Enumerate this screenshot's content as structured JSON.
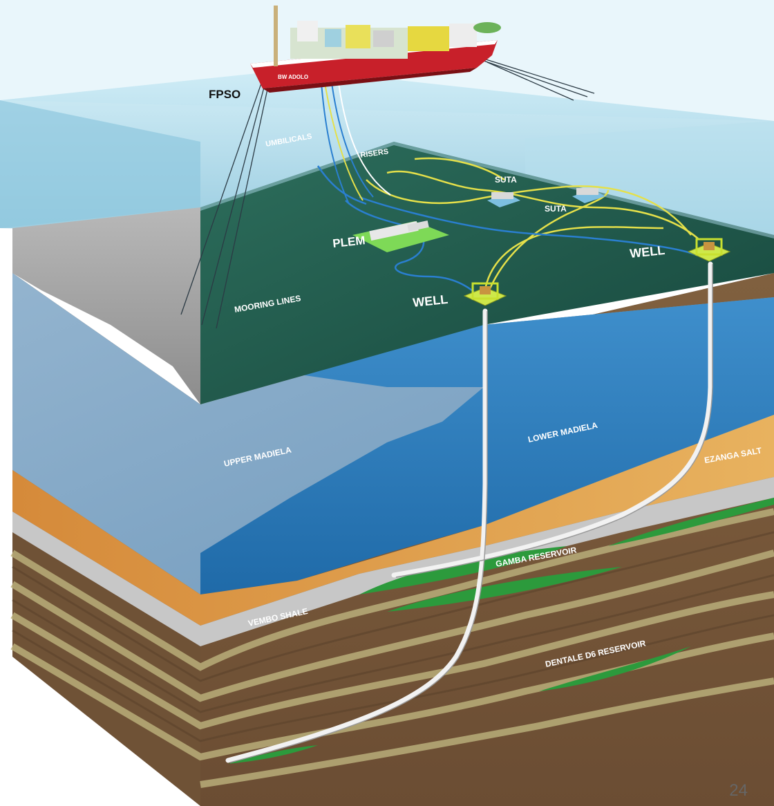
{
  "labels": {
    "fpso": "FPSO",
    "ship_name": "BW ADOLO",
    "umbilicals": "UMBILICALS",
    "risers": "RISERS",
    "suta_1": "SUTA",
    "suta_2": "SUTA",
    "plem": "PLEM",
    "well_1": "WELL",
    "well_2": "WELL",
    "mooring_lines": "MOORING LINES",
    "upper_madiela": "UPPER MADIELA",
    "lower_madiela": "LOWER MADIELA",
    "ezanga_salt": "EZANGA SALT",
    "gamba_reservoir": "GAMBA RESERVOIR",
    "vembo_shale": "VEMBO SHALE",
    "dentale_reservoir": "DENTALE D6 RESERVOIR"
  },
  "page_number": "24",
  "colors": {
    "water": "#9fd3e8",
    "seabed": "#1f5b4e",
    "upper_madiela": "#7fa6c7",
    "lower_madiela": "#2f7fc0",
    "salt": "#e2a14f",
    "shale": "#c9c9c9",
    "sediment": "#7a5a3e",
    "reservoir": "#2c9a3c",
    "flowline_yellow": "#e5e04a",
    "flowline_blue": "#2a7fd0",
    "hull": "#c8202a"
  }
}
